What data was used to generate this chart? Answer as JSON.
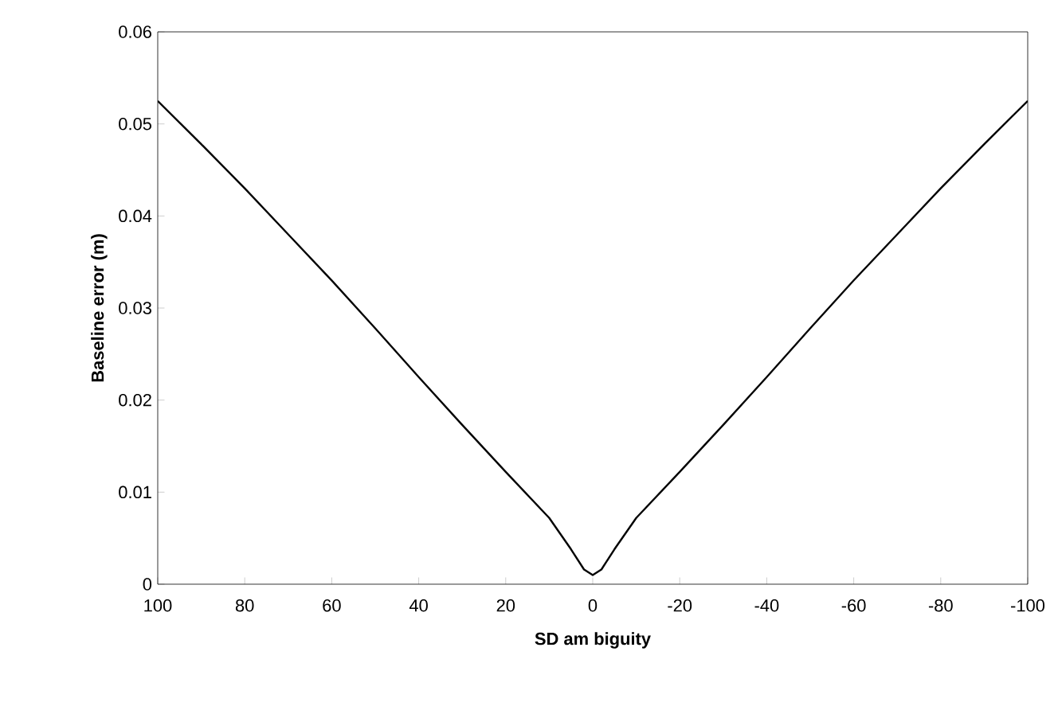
{
  "chart_data": {
    "type": "line",
    "xlabel": "SD am biguity",
    "ylabel": "Baseline error (m)",
    "xlim": [
      100,
      -100
    ],
    "xticks": [
      100,
      80,
      60,
      40,
      20,
      0,
      -20,
      -40,
      -60,
      -80,
      -100
    ],
    "ylim": [
      0,
      0.06
    ],
    "yticks": [
      0,
      0.01,
      0.02,
      0.03,
      0.04,
      0.05,
      0.06
    ],
    "grid": false,
    "marker": "none",
    "line_style": "solid",
    "series": [
      {
        "color": "#000000",
        "x": [
          100,
          90,
          80,
          70,
          60,
          50,
          40,
          30,
          20,
          10,
          5,
          2,
          0,
          -2,
          -5,
          -10,
          -20,
          -30,
          -40,
          -50,
          -60,
          -70,
          -80,
          -90,
          -100
        ],
        "values": [
          0.0525,
          0.0478,
          0.043,
          0.038,
          0.033,
          0.0278,
          0.0225,
          0.0173,
          0.0122,
          0.0072,
          0.0038,
          0.0016,
          0.001,
          0.0016,
          0.0038,
          0.0072,
          0.0122,
          0.0173,
          0.0225,
          0.0278,
          0.033,
          0.038,
          0.043,
          0.0478,
          0.0525
        ]
      }
    ]
  }
}
